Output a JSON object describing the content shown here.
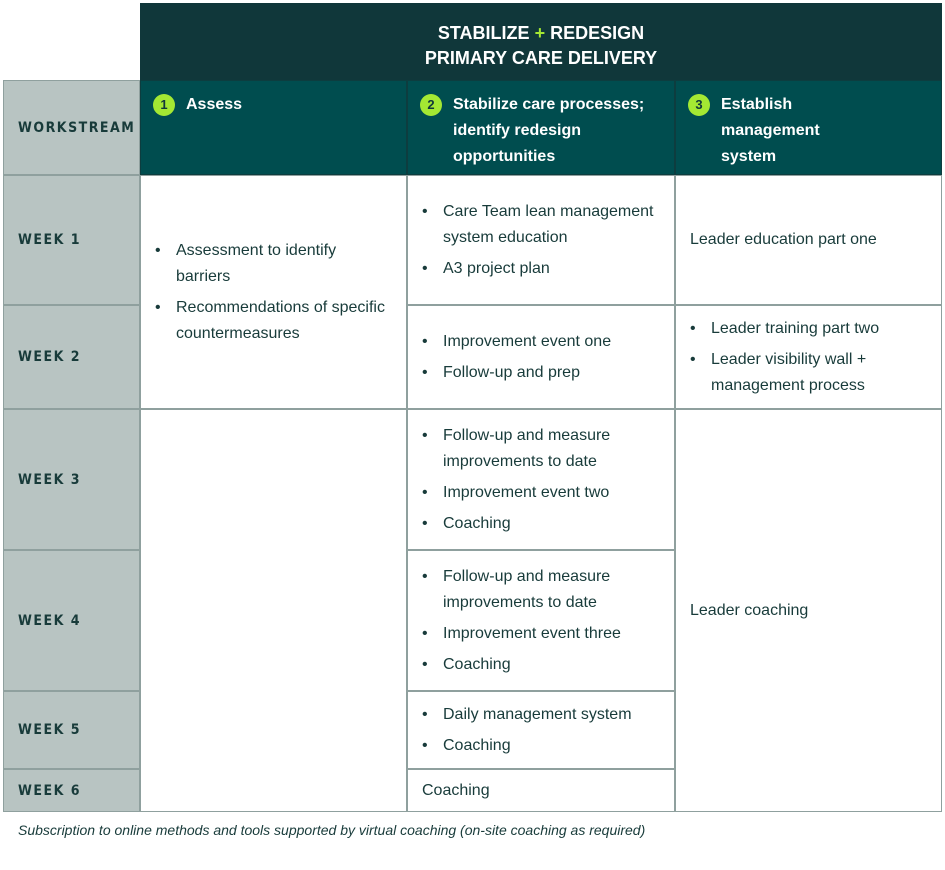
{
  "title": {
    "line1a": "STABILIZE",
    "plus": "+",
    "line1b": "REDESIGN",
    "line2": "PRIMARY CARE DELIVERY"
  },
  "workstream_label": "WORKSTREAM",
  "columns": [
    {
      "num": "1",
      "label": "Assess"
    },
    {
      "num": "2",
      "label": "Stabilize care processes; identify redesign opportunities"
    },
    {
      "num": "3",
      "label": "Establish management system"
    }
  ],
  "weeks": [
    "WEEK 1",
    "WEEK 2",
    "WEEK 3",
    "WEEK 4",
    "WEEK 5",
    "WEEK 6"
  ],
  "assess": [
    "Assessment to identify barriers",
    "Recommendations of specific countermeasures"
  ],
  "stabilize": {
    "w1": [
      "Care Team lean management system education",
      "A3 project plan"
    ],
    "w2": [
      "Improvement event one",
      "Follow-up and prep"
    ],
    "w3": [
      "Follow-up and measure improvements to date",
      "Improvement event two",
      "Coaching"
    ],
    "w4": [
      "Follow-up and measure improvements to date",
      "Improvement event three",
      "Coaching"
    ],
    "w5": [
      "Daily management system",
      "Coaching"
    ],
    "w6": "Coaching"
  },
  "management": {
    "w1": "Leader education part one",
    "w2": [
      "Leader training part two",
      "Leader visibility wall + management process"
    ],
    "w3_6": "Leader coaching"
  },
  "caption": "Subscription to online methods and tools supported by virtual coaching (on-site coaching as required)",
  "colors": {
    "header_dark": "#10373a",
    "header": "#004d4f",
    "accent": "#a4e833",
    "label_bg": "#b8c4c2"
  }
}
